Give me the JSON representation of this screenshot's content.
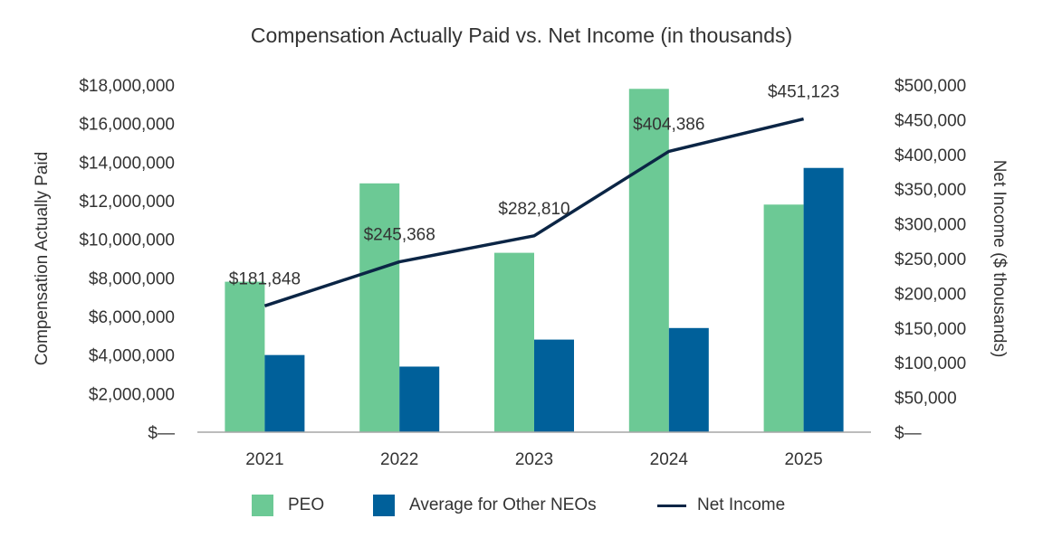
{
  "chart_data": {
    "type": "bar",
    "title": "Compensation Actually Paid vs. Net Income (in thousands)",
    "categories": [
      "2021",
      "2022",
      "2023",
      "2024",
      "2025"
    ],
    "series": [
      {
        "name": "PEO",
        "type": "bar",
        "axis": "left",
        "color": "#6cc995",
        "values": [
          7800000,
          12900000,
          9300000,
          17800000,
          11800000
        ]
      },
      {
        "name": "Average for Other NEOs",
        "type": "bar",
        "axis": "left",
        "color": "#00609a",
        "values": [
          4000000,
          3400000,
          4800000,
          5400000,
          13700000
        ]
      },
      {
        "name": "Net Income",
        "type": "line",
        "axis": "right",
        "color": "#0b2545",
        "values": [
          181848,
          245368,
          282810,
          404386,
          451123
        ]
      }
    ],
    "line_labels": [
      "$181,848",
      "$245,368",
      "$282,810",
      "$404,386",
      "$451,123"
    ],
    "ylabel": "Compensation Actually Paid",
    "ylim": [
      0,
      18000000
    ],
    "yticks": [
      "$—",
      "$2,000,000",
      "$4,000,000",
      "$6,000,000",
      "$8,000,000",
      "$10,000,000",
      "$12,000,000",
      "$14,000,000",
      "$16,000,000",
      "$18,000,000"
    ],
    "y2label": "Net Income ($ thousands)",
    "y2lim": [
      0,
      500000
    ],
    "y2ticks": [
      "$—",
      "$50,000",
      "$100,000",
      "$150,000",
      "$200,000",
      "$250,000",
      "$300,000",
      "$350,000",
      "$400,000",
      "$450,000",
      "$500,000"
    ],
    "legend_position": "bottom",
    "grid": false
  }
}
